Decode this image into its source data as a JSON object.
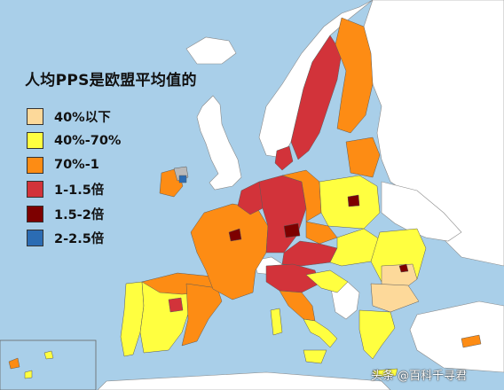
{
  "title": "人均PPS是欧盟平均值的",
  "legend": [
    {
      "label": "40%以下",
      "color": "#fdd99a"
    },
    {
      "label": "40%-70%",
      "color": "#ffff40"
    },
    {
      "label": "70%-1",
      "color": "#fd8c14"
    },
    {
      "label": "1-1.5倍",
      "color": "#d2333a"
    },
    {
      "label": "1.5-2倍",
      "color": "#7d0000"
    },
    {
      "label": "2-2.5倍",
      "color": "#2b6cb3"
    }
  ],
  "colors": {
    "sea": "#a9cfe9",
    "non_eu_land": "#ffffff",
    "no_data": "#b9b9b9",
    "border": "#8a8a8a"
  },
  "watermark": "头条 @百科千寻君"
}
